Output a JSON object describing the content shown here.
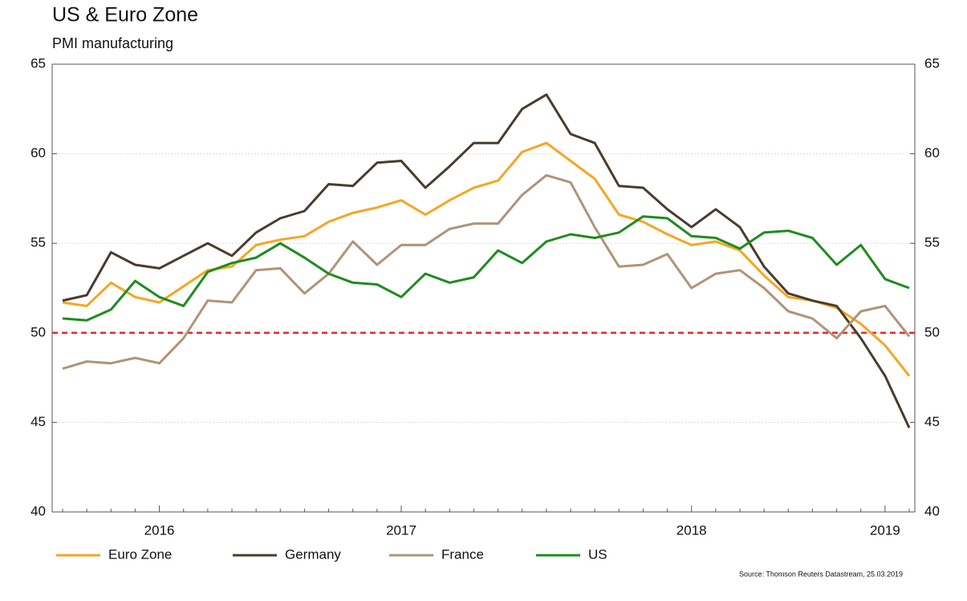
{
  "chart_data": {
    "type": "line",
    "title": "US & Euro Zone",
    "subtitle": "PMI manufacturing",
    "source": "Source: Thomson Reuters Datastream, 25.03.2019",
    "categories": [
      null,
      null,
      null,
      null,
      "2016",
      null,
      null,
      null,
      null,
      null,
      null,
      null,
      null,
      null,
      "2017",
      null,
      null,
      null,
      null,
      null,
      null,
      null,
      null,
      null,
      null,
      null,
      "2018",
      null,
      null,
      null,
      null,
      null,
      null,
      null,
      "2019",
      null
    ],
    "series": [
      {
        "name": "Euro Zone",
        "color": "#f5a623",
        "values": [
          51.7,
          51.5,
          52.8,
          52.0,
          51.7,
          52.6,
          53.5,
          53.7,
          54.9,
          55.2,
          55.4,
          56.2,
          56.7,
          57.0,
          57.4,
          56.6,
          57.4,
          58.1,
          58.5,
          60.1,
          60.6,
          59.6,
          58.6,
          56.6,
          56.2,
          55.5,
          54.9,
          55.1,
          54.6,
          53.2,
          52.0,
          51.8,
          51.4,
          50.5,
          49.3,
          47.6
        ]
      },
      {
        "name": "Germany",
        "color": "#4a3b2c",
        "values": [
          51.8,
          52.1,
          54.5,
          53.8,
          53.6,
          54.3,
          55.0,
          54.3,
          55.6,
          56.4,
          56.8,
          58.3,
          58.2,
          59.5,
          59.6,
          58.1,
          59.3,
          60.6,
          60.6,
          62.5,
          63.3,
          61.1,
          60.6,
          58.2,
          58.1,
          56.9,
          55.9,
          56.9,
          55.9,
          53.7,
          52.2,
          51.8,
          51.5,
          49.7,
          47.6,
          44.7
        ]
      },
      {
        "name": "France",
        "color": "#b09478",
        "values": [
          48.0,
          48.4,
          48.3,
          48.6,
          48.3,
          49.7,
          51.8,
          51.7,
          53.5,
          53.6,
          52.2,
          53.3,
          55.1,
          53.8,
          54.9,
          54.9,
          55.8,
          56.1,
          56.1,
          57.7,
          58.8,
          58.4,
          55.9,
          53.7,
          53.8,
          54.4,
          52.5,
          53.3,
          53.5,
          52.5,
          51.2,
          50.8,
          49.7,
          51.2,
          51.5,
          49.8
        ]
      },
      {
        "name": "US",
        "color": "#1e8c1e",
        "values": [
          50.8,
          50.7,
          51.3,
          52.9,
          52.0,
          51.5,
          53.4,
          53.9,
          54.2,
          55.0,
          54.2,
          53.3,
          52.8,
          52.7,
          52.0,
          53.3,
          52.8,
          53.1,
          54.6,
          53.9,
          55.1,
          55.5,
          55.3,
          55.6,
          56.5,
          56.4,
          55.4,
          55.3,
          54.7,
          55.6,
          55.7,
          55.3,
          53.8,
          54.9,
          53.0,
          52.5
        ]
      }
    ],
    "ylim": [
      40,
      65
    ],
    "yticks": [
      40,
      45,
      50,
      55,
      60,
      65
    ],
    "grid": true,
    "reference_line": {
      "value": 50,
      "color": "#e8282b"
    },
    "legend": "bottom"
  }
}
